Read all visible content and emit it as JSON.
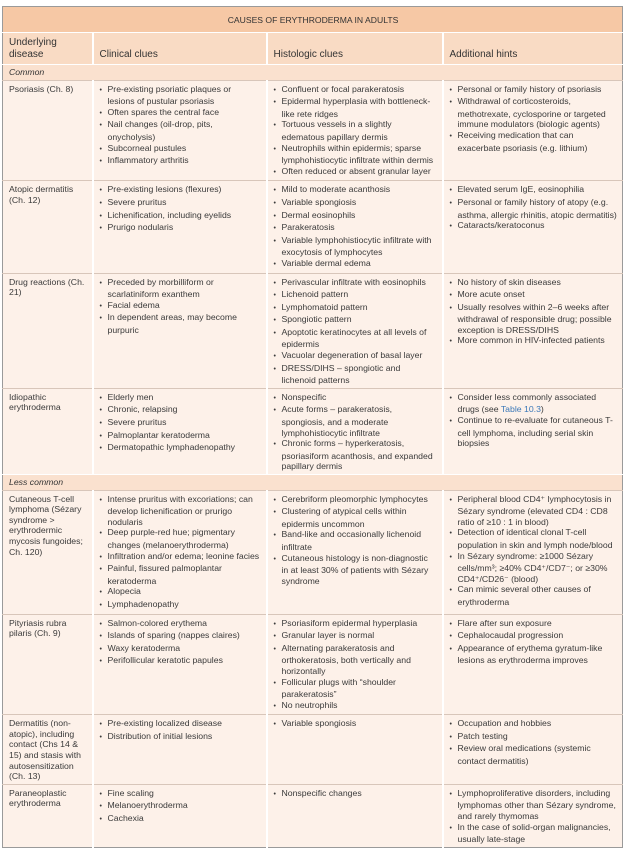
{
  "title": "CAUSES OF ERYTHRODERMA IN ADULTS",
  "headers": [
    "Underlying disease",
    "Clinical clues",
    "Histologic clues",
    "Additional hints"
  ],
  "accent_colors": {
    "title_bg": "#f6c8a5",
    "header_bg": "#f9dbc4",
    "body_bg": "#fdf1e9",
    "link": "#3b78b8"
  },
  "sections": [
    {
      "label": "Common",
      "rows": [
        {
          "disease": "Psoriasis (Ch. 8)",
          "clinical": [
            "Pre-existing psoriatic plaques or lesions of pustular psoriasis",
            "Often spares the central face",
            "Nail changes (oil-drop, pits, onycholysis)",
            "Subcorneal pustules",
            "Inflammatory arthritis"
          ],
          "histologic": [
            "Confluent or focal parakeratosis",
            "Epidermal hyperplasia with bottleneck-like rete ridges",
            "Tortuous vessels in a slightly edematous papillary dermis",
            "Neutrophils within epidermis; sparse lymphohistiocytic infiltrate within dermis",
            "Often reduced or absent granular layer"
          ],
          "hints": [
            "Personal or family history of psoriasis",
            "Withdrawal of corticosteroids, methotrexate, cyclosporine or targeted immune modulators (biologic agents)",
            "Receiving medication that can exacerbate psoriasis (e.g. lithium)"
          ]
        },
        {
          "disease": "Atopic dermatitis (Ch. 12)",
          "clinical": [
            "Pre-existing lesions (flexures)",
            "Severe pruritus",
            "Lichenification, including eyelids",
            "Prurigo nodularis"
          ],
          "histologic": [
            "Mild to moderate acanthosis",
            "Variable spongiosis",
            "Dermal eosinophils",
            "Parakeratosis",
            "Variable lymphohistiocytic infiltrate with exocytosis of lymphocytes",
            "Variable dermal edema"
          ],
          "hints": [
            "Elevated serum IgE, eosinophilia",
            "Personal or family history of atopy (e.g. asthma, allergic rhinitis, atopic dermatitis)",
            "Cataracts/keratoconus"
          ]
        },
        {
          "disease": "Drug reactions (Ch. 21)",
          "clinical": [
            "Preceded by morbilliform or scarlatiniform exanthem",
            "Facial edema",
            "In dependent areas, may become purpuric"
          ],
          "histologic": [
            "Perivascular infiltrate with eosinophils",
            "Lichenoid pattern",
            "Lymphomatoid pattern",
            "Spongiotic pattern",
            "Apoptotic keratinocytes at all levels of epidermis",
            "Vacuolar degeneration of basal layer",
            "DRESS/DIHS – spongiotic and lichenoid patterns"
          ],
          "hints": [
            "No history of skin diseases",
            "More acute onset",
            "Usually resolves within 2–6 weeks after withdrawal of responsible drug; possible exception is DRESS/DIHS",
            "More common in HIV-infected patients"
          ]
        },
        {
          "disease": "Idiopathic erythroderma",
          "clinical": [
            "Elderly men",
            "Chronic, relapsing",
            "Severe pruritus",
            "Palmoplantar keratoderma",
            "Dermatopathic lymphadenopathy"
          ],
          "histologic": [
            "Nonspecific",
            "Acute forms – parakeratosis, spongiosis, and a moderate lymphohistiocytic infiltrate",
            "Chronic forms – hyperkeratosis, psoriasiform acanthosis, and expanded papillary dermis"
          ],
          "hints": [
            {
              "pre": "Consider less commonly associated drugs (see ",
              "link": "Table 10.3",
              "post": ")"
            },
            "Continue to re-evaluate for cutaneous T-cell lymphoma, including serial skin biopsies"
          ]
        }
      ]
    },
    {
      "label": "Less common",
      "rows": [
        {
          "disease": "Cutaneous T-cell lymphoma (Sézary syndrome > erythrodermic mycosis fungoides; Ch. 120)",
          "clinical": [
            "Intense pruritus with excoriations; can develop lichenification or prurigo nodularis",
            "Deep purple-red hue; pigmentary changes (melanoerythroderma)",
            "Infiltration and/or edema; leonine facies",
            "Painful, fissured palmoplantar keratoderma",
            "Alopecia",
            "Lymphadenopathy"
          ],
          "histologic": [
            "Cerebriform pleomorphic lymphocytes",
            "Clustering of atypical cells within epidermis uncommon",
            "Band-like and occasionally lichenoid infiltrate",
            "Cutaneous histology is non-diagnostic in at least 30% of patients with Sézary syndrome"
          ],
          "hints": [
            "Peripheral blood CD4⁺ lymphocytosis in Sézary syndrome (elevated CD4 : CD8 ratio of ≥10 : 1 in blood)",
            "Detection of identical clonal T-cell population in skin and lymph node/blood",
            "In Sézary syndrome: ≥1000 Sézary cells/mm³; ≥40% CD4⁺/CD7⁻; or ≥30% CD4⁺/CD26⁻ (blood)",
            "Can mimic several other causes of erythroderma"
          ]
        },
        {
          "disease": "Pityriasis rubra pilaris (Ch. 9)",
          "clinical": [
            "Salmon-colored erythema",
            "Islands of sparing (nappes claires)",
            "Waxy keratoderma",
            "Perifollicular keratotic papules"
          ],
          "histologic": [
            "Psoriasiform epidermal hyperplasia",
            "Granular layer is normal",
            "Alternating parakeratosis and orthokeratosis, both vertically and horizontally",
            "Follicular plugs with “shoulder parakeratosis”",
            "No neutrophils"
          ],
          "hints": [
            "Flare after sun exposure",
            "Cephalocaudal progression",
            "Appearance of erythema gyratum-like lesions as erythroderma improves"
          ]
        },
        {
          "disease": "Dermatitis (non-atopic), including contact (Chs 14 & 15) and stasis with autosensitization (Ch. 13)",
          "clinical": [
            "Pre-existing localized disease",
            "Distribution of initial lesions"
          ],
          "histologic": [
            "Variable spongiosis"
          ],
          "hints": [
            "Occupation and hobbies",
            "Patch testing",
            "Review oral medications (systemic contact dermatitis)"
          ]
        },
        {
          "disease": "Paraneoplastic erythroderma",
          "clinical": [
            "Fine scaling",
            "Melanoerythroderma",
            "Cachexia"
          ],
          "histologic": [
            "Nonspecific changes"
          ],
          "hints": [
            "Lymphoproliferative disorders, including lymphomas other than Sézary syndrome, and rarely thymomas",
            "In the case of solid-organ malignancies, usually late-stage"
          ]
        }
      ]
    }
  ]
}
